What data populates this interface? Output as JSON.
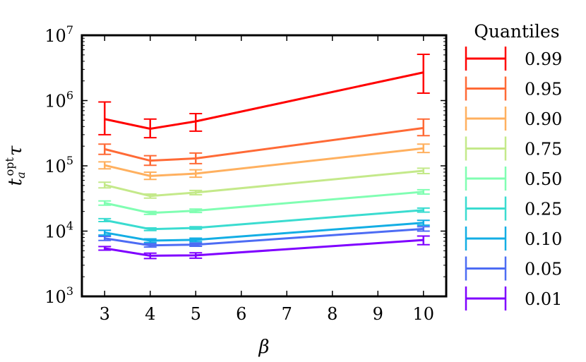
{
  "chart_data": {
    "type": "line",
    "y_scale": "log",
    "xlabel": "β",
    "ylabel": {
      "main": "t",
      "sub": "a",
      "sup": "opt",
      "tail": "τ"
    },
    "xlim": [
      2.5,
      10.5
    ],
    "ylim": [
      1000,
      10000000
    ],
    "x_ticks": [
      3,
      4,
      5,
      6,
      7,
      8,
      9,
      10
    ],
    "y_ticks": [
      {
        "value": 1000,
        "base": "10",
        "exp": "3"
      },
      {
        "value": 10000,
        "base": "10",
        "exp": "4"
      },
      {
        "value": 100000,
        "base": "10",
        "exp": "5"
      },
      {
        "value": 1000000,
        "base": "10",
        "exp": "6"
      },
      {
        "value": 10000000,
        "base": "10",
        "exp": "7"
      }
    ],
    "x": [
      3,
      4,
      5,
      10
    ],
    "legend": {
      "title": "Quantiles",
      "position": "right-outside"
    },
    "series": [
      {
        "name": "0.99",
        "color": "#ff0000",
        "values": [
          520000,
          370000,
          480000,
          2700000
        ],
        "err_low": [
          300000,
          270000,
          340000,
          1300000
        ],
        "err_high": [
          950000,
          520000,
          630000,
          5100000
        ]
      },
      {
        "name": "0.95",
        "color": "#ff6a36",
        "values": [
          180000,
          120000,
          130000,
          380000
        ],
        "err_low": [
          150000,
          102000,
          108000,
          290000
        ],
        "err_high": [
          215000,
          143000,
          157000,
          520000
        ]
      },
      {
        "name": "0.90",
        "color": "#ffb05f",
        "values": [
          102000,
          70000,
          76000,
          185000
        ],
        "err_low": [
          90000,
          62000,
          67000,
          160000
        ],
        "err_high": [
          115000,
          80000,
          87000,
          215000
        ]
      },
      {
        "name": "0.75",
        "color": "#c4e98a",
        "values": [
          51000,
          34500,
          39000,
          84000
        ],
        "err_low": [
          46000,
          32000,
          36000,
          76000
        ],
        "err_high": [
          56000,
          37000,
          42000,
          92000
        ]
      },
      {
        "name": "0.50",
        "color": "#80feb2",
        "values": [
          27000,
          19000,
          20500,
          40000
        ],
        "err_low": [
          25000,
          18000,
          19300,
          37000
        ],
        "err_high": [
          29000,
          20000,
          21800,
          43000
        ]
      },
      {
        "name": "0.25",
        "color": "#3adcd0",
        "values": [
          14700,
          10700,
          11200,
          21000
        ],
        "err_low": [
          14000,
          10200,
          10700,
          19500
        ],
        "err_high": [
          15500,
          11200,
          11700,
          22500
        ]
      },
      {
        "name": "0.10",
        "color": "#13aee4",
        "values": [
          9500,
          7150,
          7350,
          13400
        ],
        "err_low": [
          8700,
          6700,
          6900,
          12300
        ],
        "err_high": [
          10300,
          7600,
          7800,
          14600
        ]
      },
      {
        "name": "0.05",
        "color": "#4d6cf4",
        "values": [
          7750,
          6050,
          6200,
          10800
        ],
        "err_low": [
          7200,
          5700,
          5850,
          10000
        ],
        "err_high": [
          8300,
          6400,
          6550,
          11700
        ]
      },
      {
        "name": "0.01",
        "color": "#7f00ff",
        "values": [
          5450,
          4200,
          4250,
          7300
        ],
        "err_low": [
          5100,
          3800,
          3850,
          6200
        ],
        "err_high": [
          5800,
          4600,
          4650,
          8400
        ]
      }
    ]
  }
}
